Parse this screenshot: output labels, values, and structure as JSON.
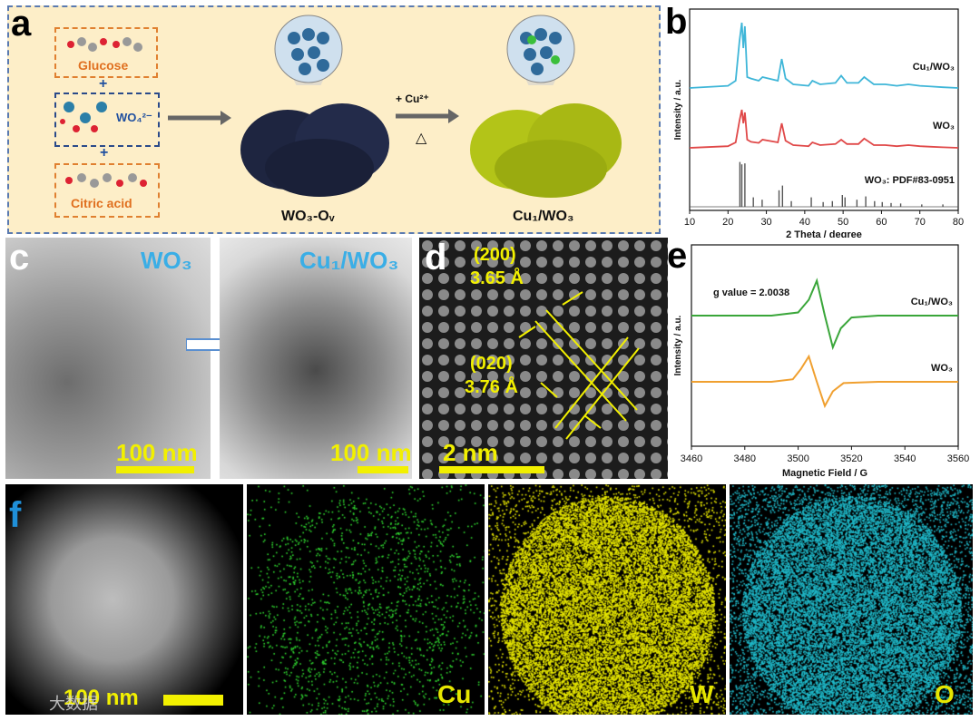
{
  "panel_letters": {
    "a": "a",
    "b": "b",
    "c": "c",
    "d": "d",
    "e": "e",
    "f": "f"
  },
  "scheme": {
    "glucose": "Glucose",
    "plus1": "+",
    "wo4": "WO₄²⁻",
    "plus2": "+",
    "citric": "Citric acid",
    "mid_label": "WO₃-Oᵥ",
    "cu_label": "+ Cu²⁺",
    "heat": "△",
    "right_label": "Cu₁/WO₃"
  },
  "chart_data": [
    {
      "type": "line",
      "panel": "b",
      "xlabel": "2 Theta / degree",
      "ylabel": "Intensity / a.u.",
      "xlim": [
        10,
        80
      ],
      "xticks": [
        "10",
        "20",
        "30",
        "40",
        "50",
        "60",
        "70",
        "80"
      ],
      "series": [
        {
          "name": "Cu₁/WO₃",
          "color": "#3fb6d8",
          "x": [
            10,
            20,
            22,
            23,
            23.6,
            24,
            24.4,
            25,
            26,
            28,
            29,
            33,
            34,
            35,
            37,
            41,
            42,
            44,
            48,
            49.5,
            51,
            54,
            55.5,
            58,
            61,
            64,
            67,
            70,
            73,
            76,
            80
          ],
          "y": [
            0.05,
            0.08,
            0.15,
            0.7,
            0.95,
            0.6,
            0.9,
            0.2,
            0.18,
            0.15,
            0.2,
            0.15,
            0.45,
            0.18,
            0.1,
            0.08,
            0.15,
            0.1,
            0.12,
            0.22,
            0.12,
            0.12,
            0.2,
            0.1,
            0.1,
            0.08,
            0.1,
            0.08,
            0.07,
            0.06,
            0.05
          ]
        },
        {
          "name": "WO₃",
          "color": "#e04848",
          "x": [
            10,
            20,
            22,
            23,
            23.6,
            24,
            24.4,
            25,
            26,
            28,
            29,
            33,
            34,
            35,
            37,
            41,
            42,
            44,
            48,
            49.5,
            51,
            54,
            55.5,
            58,
            61,
            64,
            67,
            70,
            73,
            76,
            80
          ],
          "y": [
            0.05,
            0.08,
            0.15,
            0.55,
            0.75,
            0.5,
            0.7,
            0.2,
            0.16,
            0.14,
            0.2,
            0.15,
            0.5,
            0.18,
            0.1,
            0.08,
            0.15,
            0.1,
            0.12,
            0.2,
            0.12,
            0.12,
            0.22,
            0.1,
            0.1,
            0.08,
            0.1,
            0.08,
            0.07,
            0.06,
            0.05
          ]
        },
        {
          "name": "WO₃: PDF#83-0951",
          "color": "#555555",
          "type": "stick",
          "x": [
            23.1,
            23.6,
            24.4,
            26.6,
            28.9,
            33.3,
            34.2,
            36.5,
            41.7,
            44.8,
            47.2,
            49.8,
            50.5,
            53.6,
            55.9,
            58.2,
            60.2,
            62.5,
            65.0,
            70.5,
            76.0
          ],
          "y": [
            0.95,
            0.9,
            0.92,
            0.2,
            0.15,
            0.35,
            0.45,
            0.12,
            0.2,
            0.1,
            0.12,
            0.25,
            0.2,
            0.15,
            0.22,
            0.12,
            0.1,
            0.08,
            0.07,
            0.05,
            0.05
          ]
        }
      ]
    },
    {
      "type": "line",
      "panel": "e",
      "xlabel": "Magnetic Field / G",
      "ylabel": "Intensity / a.u.",
      "xlim": [
        3460,
        3560
      ],
      "xticks": [
        "3460",
        "3480",
        "3500",
        "3520",
        "3540",
        "3560"
      ],
      "annotation": "g value = 2.0038",
      "series": [
        {
          "name": "Cu₁/WO₃",
          "color": "#3aa63a",
          "x": [
            3460,
            3490,
            3500,
            3504,
            3507,
            3510,
            3513,
            3516,
            3520,
            3530,
            3560
          ],
          "y": [
            0,
            0,
            0.05,
            0.25,
            0.55,
            0,
            -0.5,
            -0.2,
            -0.03,
            0,
            0
          ]
        },
        {
          "name": "WO₃",
          "color": "#f0a030",
          "x": [
            3460,
            3490,
            3498,
            3501,
            3504,
            3507,
            3510,
            3513,
            3517,
            3530,
            3560
          ],
          "y": [
            0,
            0,
            0.04,
            0.2,
            0.4,
            0,
            -0.38,
            -0.15,
            -0.02,
            0,
            0
          ]
        }
      ]
    }
  ],
  "panel_c": {
    "left_title": "WO₃",
    "right_title": "Cu₁/WO₃",
    "scale_left": "100 nm",
    "scale_right": "100 nm"
  },
  "panel_d": {
    "plane1": "(200)",
    "d1": "3.65 Å",
    "plane2": "(020)",
    "d2": "3.76 Å",
    "scale": "2 nm"
  },
  "panel_f": {
    "scale": "100 nm",
    "cu": "Cu",
    "w": "W",
    "o": "O",
    "colors": {
      "cu": "#2fd62f",
      "w": "#e6e600",
      "o": "#1fb8c8"
    }
  },
  "watermark": "大数据"
}
